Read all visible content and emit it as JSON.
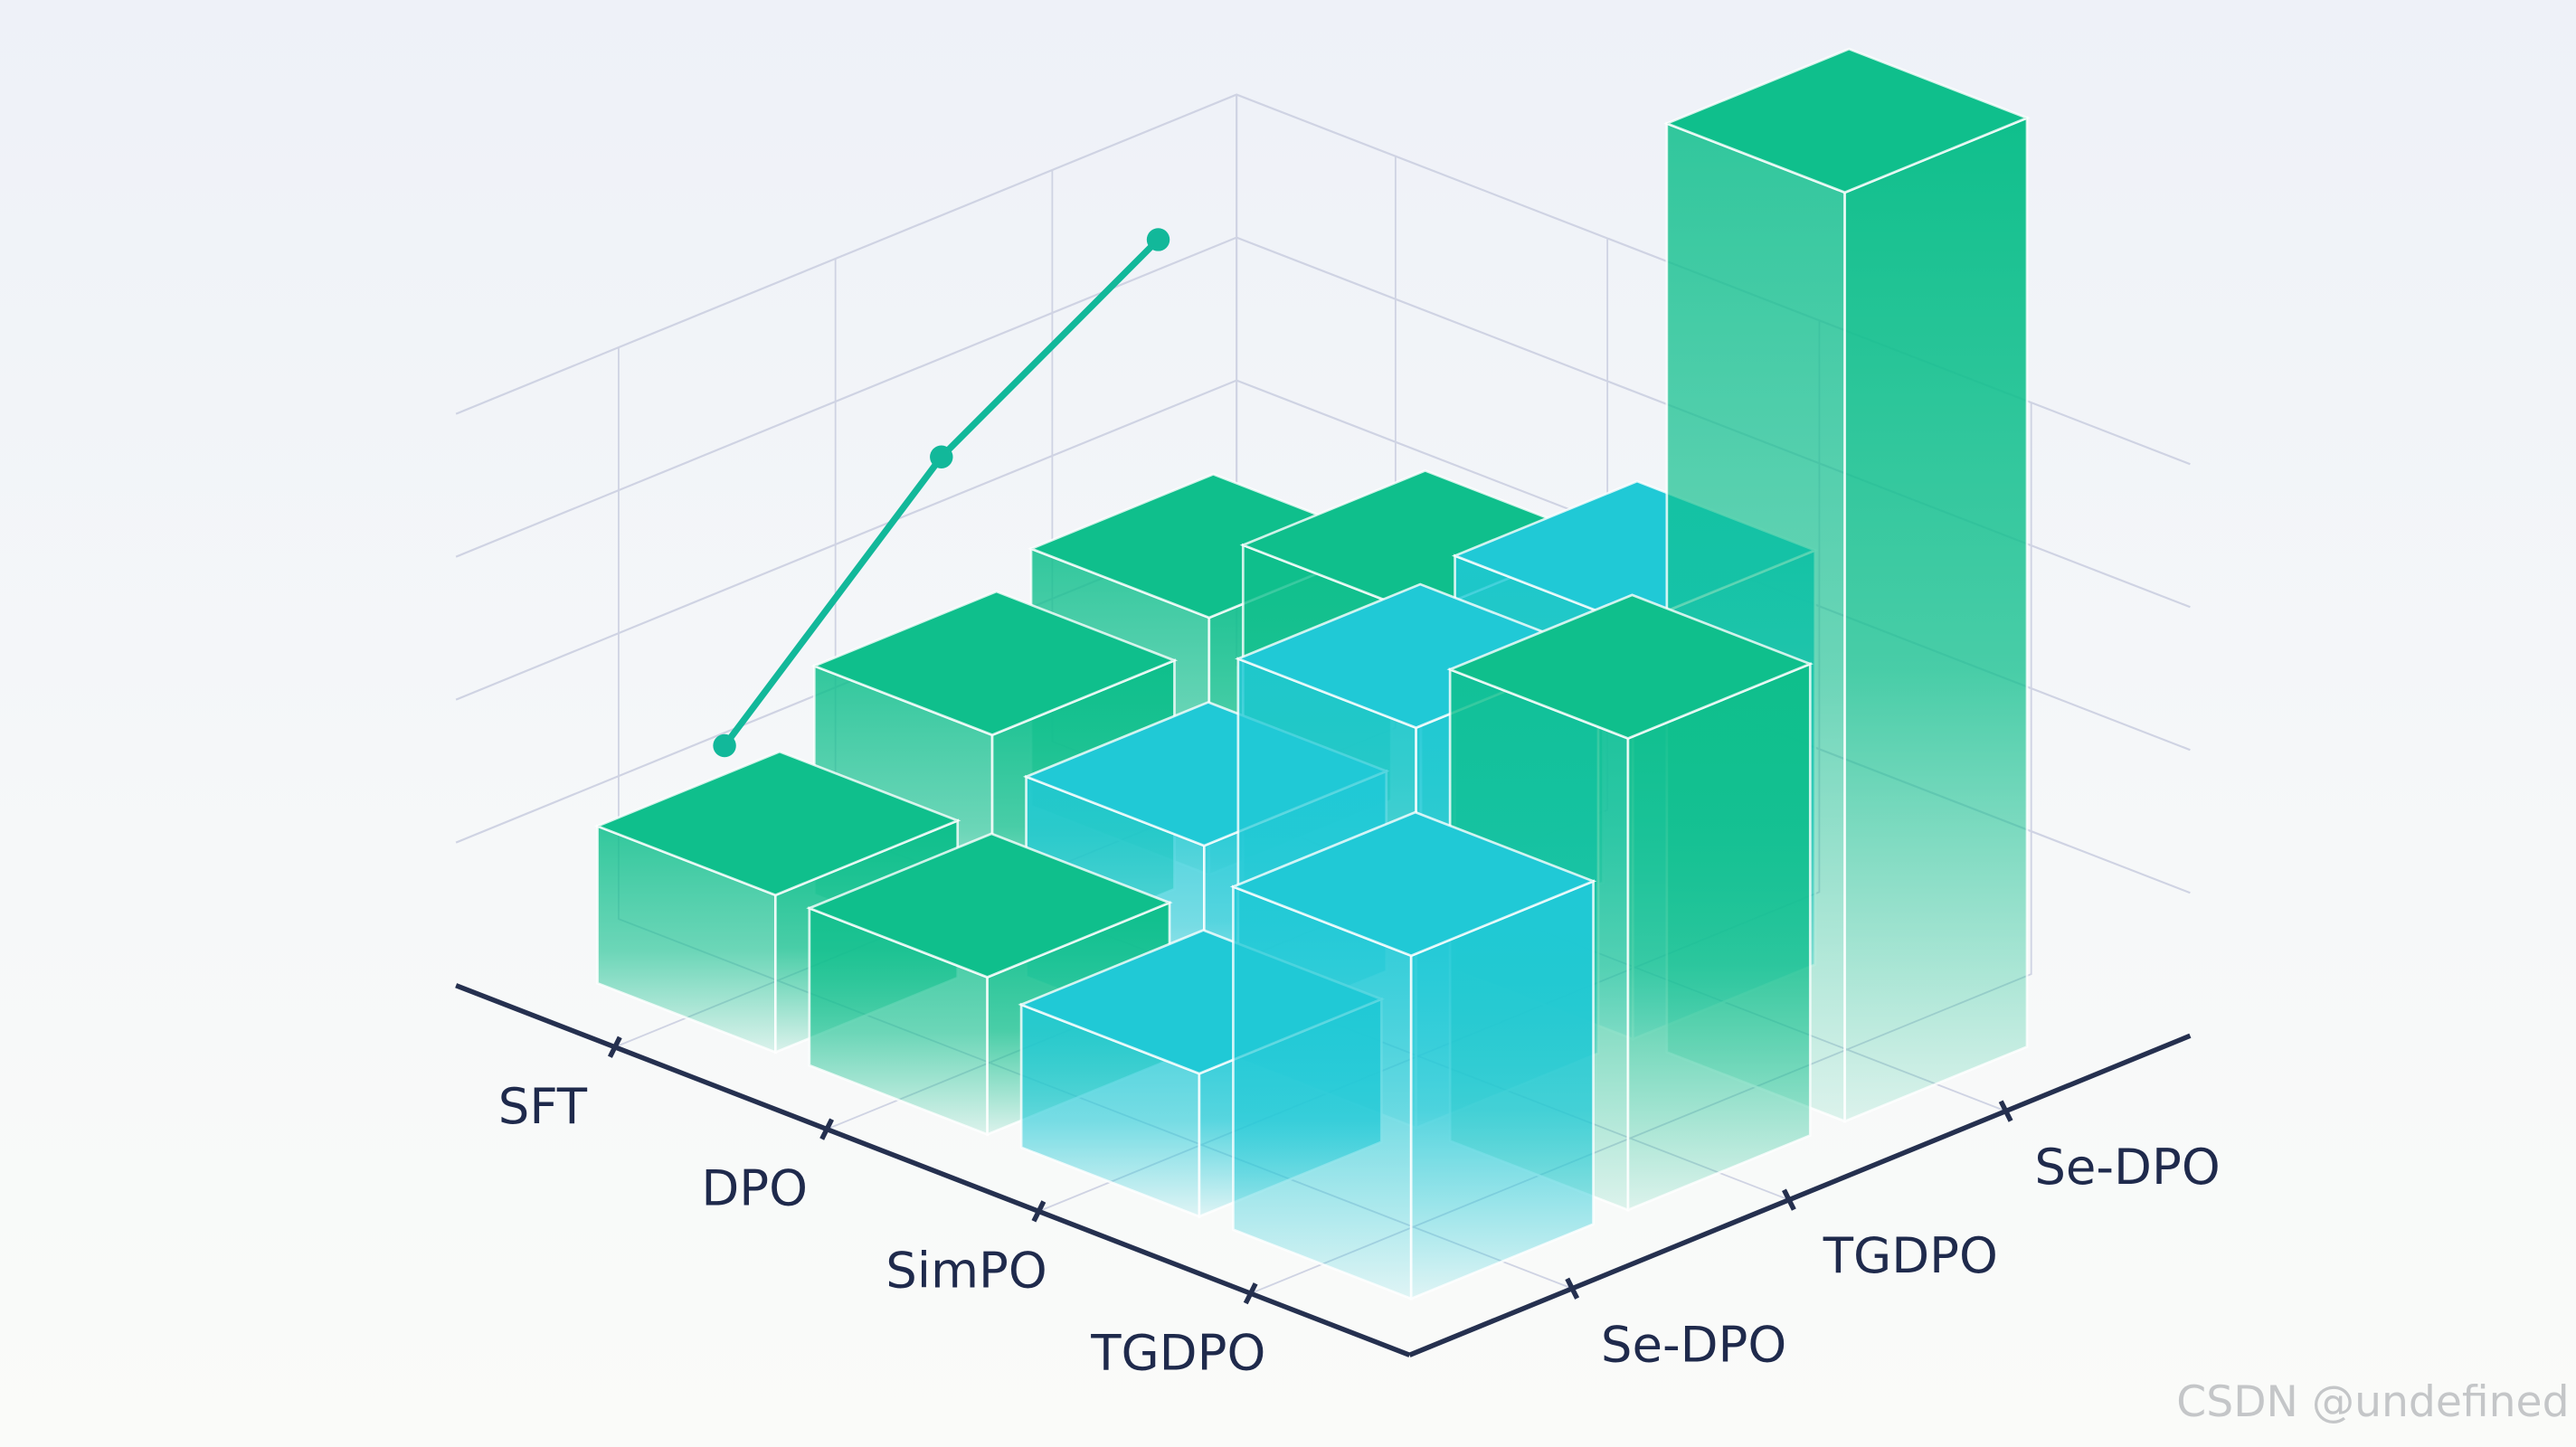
{
  "chart_data": {
    "type": "bar3d",
    "row_categories": [
      "SFT",
      "DPO",
      "SimPO",
      "TGDPO"
    ],
    "col_categories": [
      "Se-DPO",
      "TGDPO",
      "Se-DPO"
    ],
    "values": [
      [
        1.1,
        1.6,
        1.8
      ],
      [
        1.1,
        1.4,
        2.4
      ],
      [
        1.0,
        2.8,
        2.9
      ],
      [
        2.4,
        3.3,
        6.5
      ]
    ],
    "colors": [
      [
        "#0fbf8c",
        "#0fbf8c",
        "#0fbf8c"
      ],
      [
        "#0fbf8c",
        "#20c9d6",
        "#0fbf8c"
      ],
      [
        "#20c9d6",
        "#20c9d6",
        "#20c9d6"
      ],
      [
        "#20c9d6",
        "#0fbf8c",
        "#0fbf8c"
      ]
    ],
    "line": {
      "color": "#12b89a",
      "values": [
        1.5,
        2.9,
        3.8
      ]
    },
    "zlim": [
      0,
      4
    ],
    "zticks": [
      1,
      2,
      3,
      4
    ],
    "grid": true
  },
  "watermark": "CSDN @undefined"
}
